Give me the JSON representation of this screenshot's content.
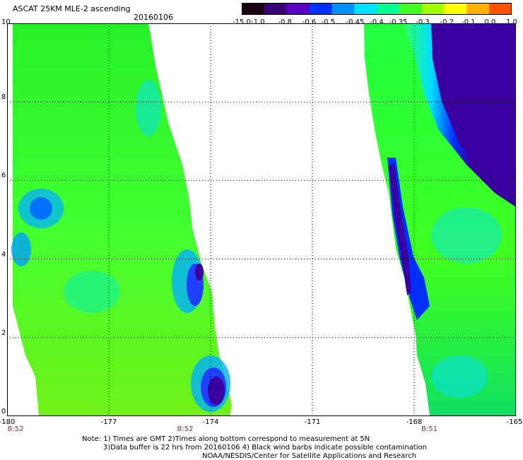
{
  "header": {
    "title": "ASCAT 25KM MLE-2 ascending",
    "date": "20160106"
  },
  "colorbar": {
    "labels": [
      "-15.0",
      "-1.0",
      "-0.8",
      "-0.6",
      "-0.5",
      "-0.45",
      "-0.4",
      "-0.35",
      "-0.3",
      "-0.2",
      "-0.1",
      "0.0",
      "1.0"
    ],
    "stops": [
      "#1a0010",
      "#3a0078",
      "#5a00c8",
      "#0030ff",
      "#0090ff",
      "#00e0ff",
      "#00ff90",
      "#40ff20",
      "#a0ff00",
      "#ffff00",
      "#ffb000",
      "#ff5000",
      "#ff0000"
    ]
  },
  "map": {
    "lon_range": [
      -180,
      -165
    ],
    "lat_range": [
      0,
      10
    ],
    "x_ticks": [
      "-180",
      "-177",
      "-174",
      "-171",
      "-168",
      "-165"
    ],
    "x_tick_values": [
      -180,
      -177,
      -174,
      -171,
      -168,
      -165
    ],
    "y_ticks": [
      "0",
      "2",
      "4",
      "6",
      "8",
      "10"
    ],
    "y_tick_values": [
      0,
      2,
      4,
      6,
      8,
      10
    ],
    "grid": "dotted",
    "time_refs": [
      {
        "label": "B:52",
        "lon": -180
      },
      {
        "label": "B:52",
        "lon": -175
      },
      {
        "label": "B:51",
        "lon": -167.8
      }
    ]
  },
  "footer": {
    "note1": "Note: 1) Times are GMT 2)Times along bottom correspond to measurement at 5N",
    "note2": "3)Data buffer is 22 hrs from 20160106 4) Black wind barbs indicate possible contamination",
    "credit": "NOAA/NESDIS/Center for Satellite Applications and Research"
  }
}
